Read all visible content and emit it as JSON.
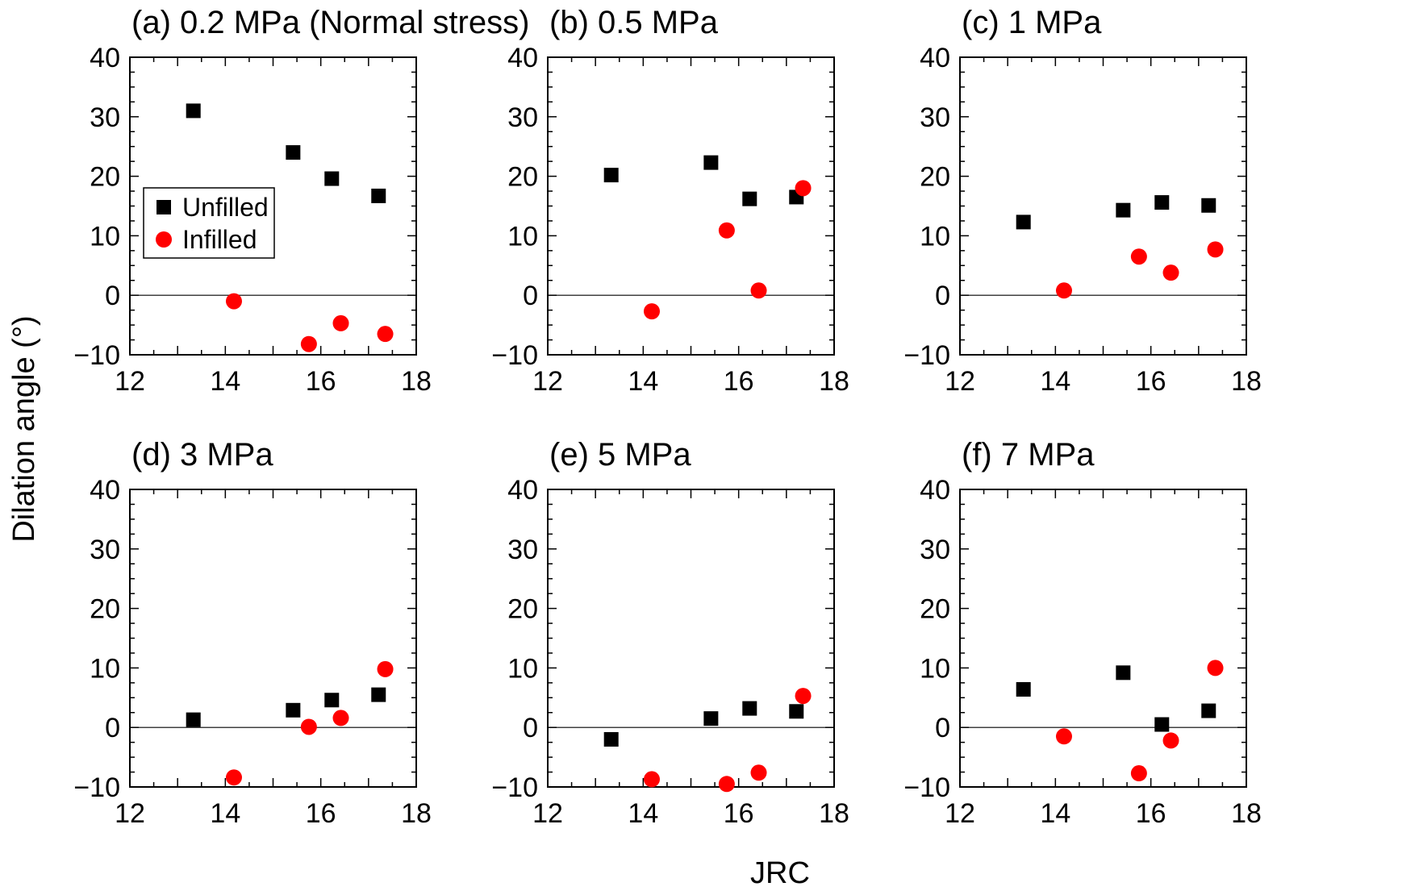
{
  "figure": {
    "ylabel": "Dilation angle (°)",
    "xlabel": "JRC",
    "legend": {
      "placement": "left, inside panel (a)",
      "entries": [
        {
          "name": "Unfilled",
          "marker": "square",
          "color": "#000000"
        },
        {
          "name": "Infilled",
          "marker": "circle",
          "color": "#ff0000"
        }
      ]
    }
  },
  "chart_data": [
    {
      "type": "scatter",
      "title": "(a) 0.2 MPa (Normal stress)",
      "xlim": [
        12,
        18
      ],
      "ylim": [
        -10,
        40
      ],
      "xticks": [
        "12",
        "14",
        "16",
        "18"
      ],
      "yticks": [
        "−10",
        "0",
        "10",
        "20",
        "30",
        "40"
      ],
      "series": [
        {
          "name": "Unfilled",
          "color": "#000000",
          "points": [
            [
              13.33,
              31.0
            ],
            [
              15.42,
              24.0
            ],
            [
              16.23,
              19.6
            ],
            [
              17.21,
              16.7
            ]
          ]
        },
        {
          "name": "Infilled",
          "color": "#ff0000",
          "points": [
            [
              14.18,
              -1.0
            ],
            [
              15.75,
              -8.2
            ],
            [
              16.42,
              -4.7
            ],
            [
              17.35,
              -6.5
            ]
          ]
        }
      ]
    },
    {
      "type": "scatter",
      "title": "(b) 0.5 MPa",
      "xlim": [
        12,
        18
      ],
      "ylim": [
        -10,
        40
      ],
      "xticks": [
        "12",
        "14",
        "16",
        "18"
      ],
      "yticks": [
        "−10",
        "0",
        "10",
        "20",
        "30",
        "40"
      ],
      "series": [
        {
          "name": "Unfilled",
          "color": "#000000",
          "points": [
            [
              13.33,
              20.2
            ],
            [
              15.42,
              22.3
            ],
            [
              16.23,
              16.2
            ],
            [
              17.21,
              16.5
            ]
          ]
        },
        {
          "name": "Infilled",
          "color": "#ff0000",
          "points": [
            [
              14.18,
              -2.7
            ],
            [
              15.75,
              10.9
            ],
            [
              16.42,
              0.8
            ],
            [
              17.35,
              18.0
            ]
          ]
        }
      ]
    },
    {
      "type": "scatter",
      "title": "(c) 1 MPa",
      "xlim": [
        12,
        18
      ],
      "ylim": [
        -10,
        40
      ],
      "xticks": [
        "12",
        "14",
        "16",
        "18"
      ],
      "yticks": [
        "−10",
        "0",
        "10",
        "20",
        "30",
        "40"
      ],
      "series": [
        {
          "name": "Unfilled",
          "color": "#000000",
          "points": [
            [
              13.33,
              12.3
            ],
            [
              15.42,
              14.3
            ],
            [
              16.23,
              15.6
            ],
            [
              17.21,
              15.1
            ]
          ]
        },
        {
          "name": "Infilled",
          "color": "#ff0000",
          "points": [
            [
              14.18,
              0.8
            ],
            [
              15.75,
              6.5
            ],
            [
              16.42,
              3.8
            ],
            [
              17.35,
              7.7
            ]
          ]
        }
      ]
    },
    {
      "type": "scatter",
      "title": "(d) 3 MPa",
      "xlim": [
        12,
        18
      ],
      "ylim": [
        -10,
        40
      ],
      "xticks": [
        "12",
        "14",
        "16",
        "18"
      ],
      "yticks": [
        "−10",
        "0",
        "10",
        "20",
        "30",
        "40"
      ],
      "series": [
        {
          "name": "Unfilled",
          "color": "#000000",
          "points": [
            [
              13.33,
              1.3
            ],
            [
              15.42,
              2.9
            ],
            [
              16.23,
              4.6
            ],
            [
              17.21,
              5.5
            ]
          ]
        },
        {
          "name": "Infilled",
          "color": "#ff0000",
          "points": [
            [
              14.18,
              -8.4
            ],
            [
              15.75,
              0.1
            ],
            [
              16.42,
              1.6
            ],
            [
              17.35,
              9.8
            ]
          ]
        }
      ]
    },
    {
      "type": "scatter",
      "title": "(e) 5 MPa",
      "xlim": [
        12,
        18
      ],
      "ylim": [
        -10,
        40
      ],
      "xticks": [
        "12",
        "14",
        "16",
        "18"
      ],
      "yticks": [
        "−10",
        "0",
        "10",
        "20",
        "30",
        "40"
      ],
      "series": [
        {
          "name": "Unfilled",
          "color": "#000000",
          "points": [
            [
              13.33,
              -2.0
            ],
            [
              15.42,
              1.5
            ],
            [
              16.23,
              3.2
            ],
            [
              17.21,
              2.7
            ]
          ]
        },
        {
          "name": "Infilled",
          "color": "#ff0000",
          "points": [
            [
              14.18,
              -8.7
            ],
            [
              15.75,
              -9.5
            ],
            [
              16.42,
              -7.6
            ],
            [
              17.35,
              5.3
            ]
          ]
        }
      ]
    },
    {
      "type": "scatter",
      "title": "(f) 7 MPa",
      "xlim": [
        12,
        18
      ],
      "ylim": [
        -10,
        40
      ],
      "xticks": [
        "12",
        "14",
        "16",
        "18"
      ],
      "yticks": [
        "−10",
        "0",
        "10",
        "20",
        "30",
        "40"
      ],
      "series": [
        {
          "name": "Unfilled",
          "color": "#000000",
          "points": [
            [
              13.33,
              6.4
            ],
            [
              15.42,
              9.2
            ],
            [
              16.23,
              0.5
            ],
            [
              17.21,
              2.8
            ]
          ]
        },
        {
          "name": "Infilled",
          "color": "#ff0000",
          "points": [
            [
              14.18,
              -1.5
            ],
            [
              15.75,
              -7.7
            ],
            [
              16.42,
              -2.2
            ],
            [
              17.35,
              10.0
            ]
          ]
        }
      ]
    }
  ]
}
